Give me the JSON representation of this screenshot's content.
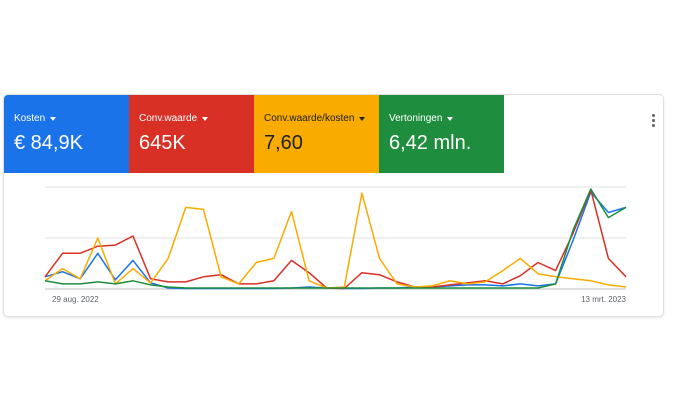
{
  "metrics": [
    {
      "label": "Kosten",
      "value": "€ 84,9K",
      "color": "#1a73e8",
      "text_color": "#ffffff"
    },
    {
      "label": "Conv.waarde",
      "value": "645K",
      "color": "#d93025",
      "text_color": "#ffffff"
    },
    {
      "label": "Conv.waarde/kosten",
      "value": "7,60",
      "color": "#f9ab00",
      "text_color": "#202124"
    },
    {
      "label": "Vertoningen",
      "value": "6,42 mln.",
      "color": "#1e8e3e",
      "text_color": "#ffffff"
    }
  ],
  "more_menu_icon": "more-vert-icon",
  "chart_data": {
    "type": "line",
    "x_start_label": "29 aug. 2022",
    "x_end_label": "13 mrt. 2023",
    "grid": true,
    "ylim": [
      0,
      100
    ],
    "series": [
      {
        "key": "kosten",
        "color": "#1a73e8",
        "values": [
          12,
          17,
          10,
          35,
          9,
          28,
          6,
          1,
          0.5,
          0.5,
          0.5,
          0.5,
          0.5,
          0.5,
          1,
          2,
          1,
          0.5,
          0.5,
          1,
          1,
          2,
          2,
          3,
          4,
          4,
          3,
          5,
          3,
          5,
          48,
          95,
          75,
          80
        ]
      },
      {
        "key": "conv_waarde",
        "color": "#d93025",
        "values": [
          12,
          35,
          35,
          42,
          43,
          52,
          10,
          7,
          7,
          12,
          14,
          5,
          5,
          8,
          28,
          16,
          1,
          0.5,
          16,
          14,
          7,
          2,
          2,
          4,
          6,
          8,
          5,
          13,
          26,
          18,
          55,
          97,
          30,
          12
        ]
      },
      {
        "key": "conv_waarde_kosten",
        "color": "#f9ab00",
        "values": [
          8,
          20,
          10,
          50,
          5,
          20,
          6,
          30,
          80,
          78,
          12,
          5,
          26,
          30,
          76,
          8,
          1,
          2,
          94,
          30,
          5,
          2,
          3,
          8,
          5,
          7,
          18,
          30,
          15,
          12,
          10,
          8,
          4,
          2
        ]
      },
      {
        "key": "vertoningen",
        "color": "#1e8e3e",
        "values": [
          8,
          5,
          5,
          7,
          5,
          8,
          4,
          2,
          1,
          1,
          1,
          1,
          1,
          1,
          1,
          1,
          1,
          1,
          1,
          1,
          1,
          1,
          1,
          1,
          1,
          1,
          1,
          1,
          1,
          5,
          58,
          98,
          70,
          80
        ]
      }
    ]
  }
}
